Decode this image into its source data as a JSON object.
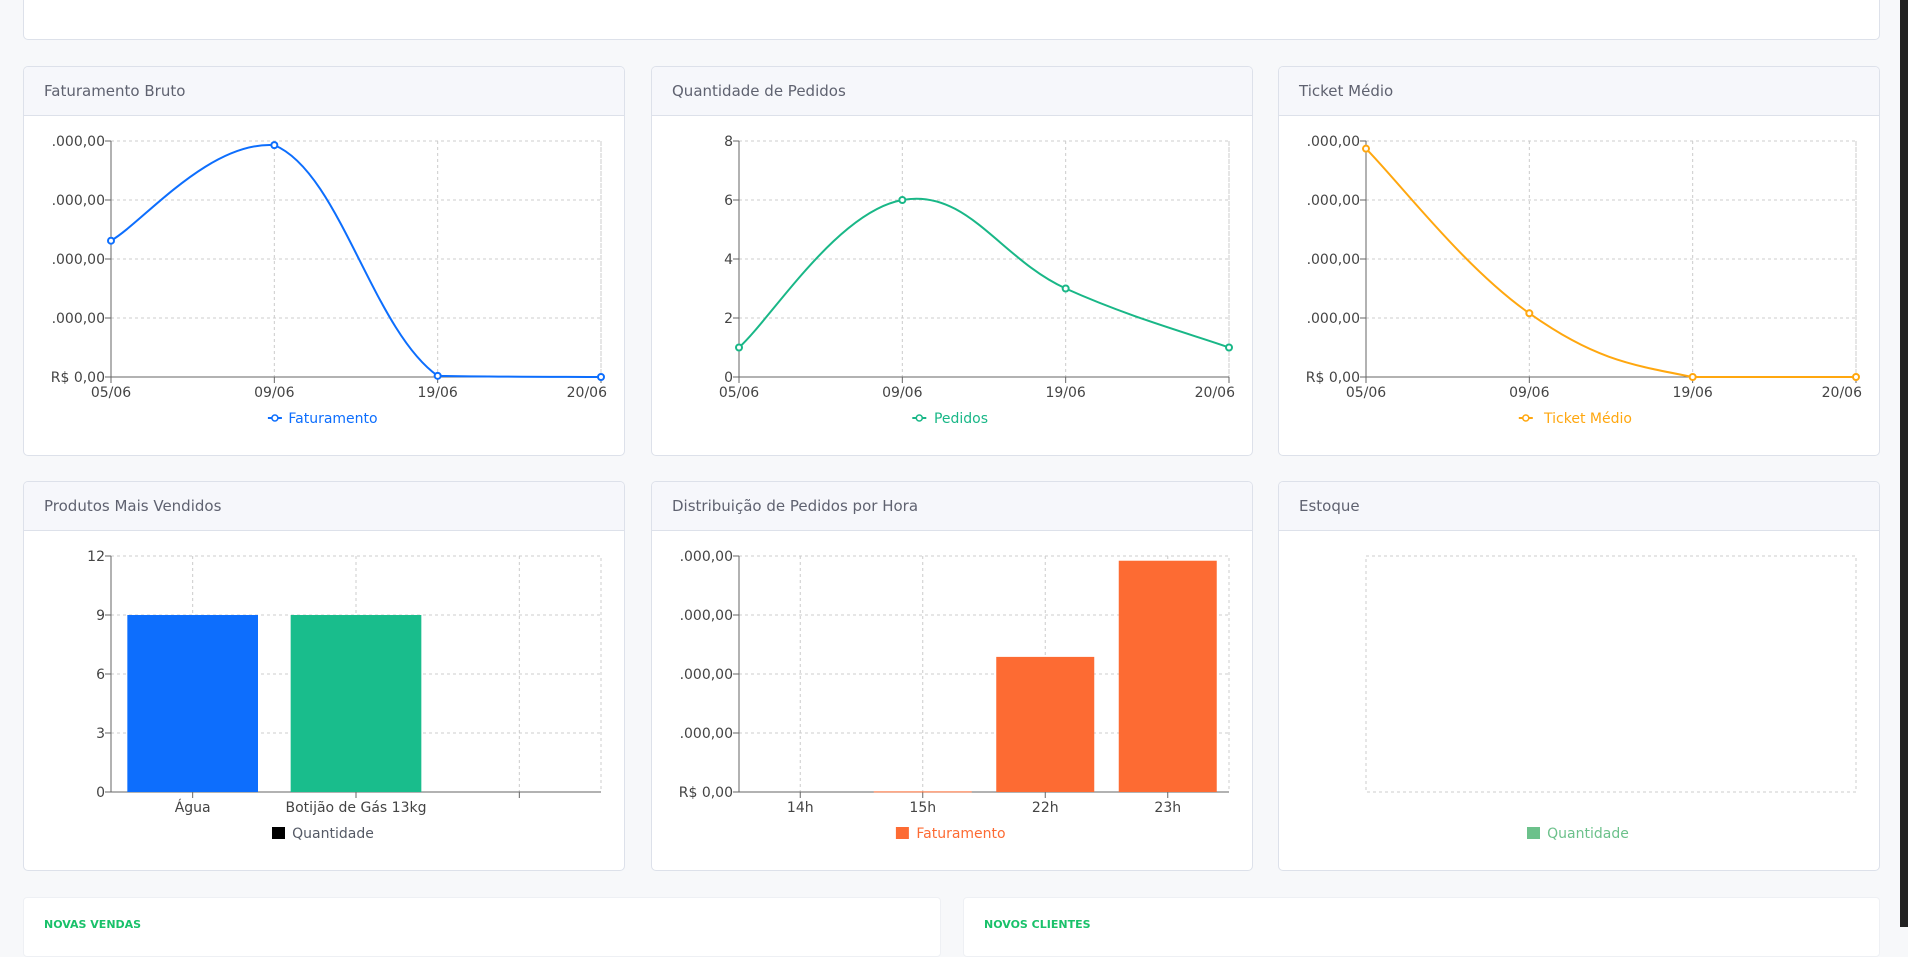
{
  "charts": [
    {
      "title": "Faturamento Bruto",
      "type": "line",
      "color": "#0d6efd",
      "legend": "Faturamento",
      "legend_icon": "line-dot",
      "categories": [
        "05/06",
        "09/06",
        "19/06",
        "20/06"
      ],
      "values": [
        2.31,
        3.93,
        0.02,
        0
      ],
      "yticks": [
        "R$ 0,00",
        ".000,00",
        ".000,00",
        ".000,00",
        ".000,00"
      ],
      "ylim": [
        0,
        4
      ]
    },
    {
      "title": "Quantidade de Pedidos",
      "type": "line",
      "color": "#19b787",
      "legend": "Pedidos",
      "legend_icon": "line-dot",
      "categories": [
        "05/06",
        "09/06",
        "19/06",
        "20/06"
      ],
      "values": [
        1,
        6,
        3,
        1
      ],
      "yticks": [
        "0",
        "2",
        "4",
        "6",
        "8"
      ],
      "ylim": [
        0,
        8
      ]
    },
    {
      "title": "Ticket Médio",
      "type": "line",
      "color": "#ffa70f",
      "legend": "Ticket Médio",
      "legend_icon": "line-dot",
      "categories": [
        "05/06",
        "09/06",
        "19/06",
        "20/06"
      ],
      "values": [
        3.87,
        1.08,
        0,
        0
      ],
      "yticks": [
        "R$ 0,00",
        ".000,00",
        ".000,00",
        ".000,00",
        ".000,00"
      ],
      "ylim": [
        0,
        4
      ]
    },
    {
      "title": "Produtos Mais Vendidos",
      "type": "bar",
      "colors": [
        "#0d6efd",
        "#19bd8c",
        "#ffffff"
      ],
      "legend": "Quantidade",
      "legend_color": "#000000",
      "legend_text_color": "#555a66",
      "categories": [
        "Água",
        "Botijão de Gás 13kg",
        ""
      ],
      "values": [
        9,
        9,
        0
      ],
      "yticks": [
        "0",
        "3",
        "6",
        "9",
        "12"
      ],
      "ylim": [
        0,
        12
      ]
    },
    {
      "title": "Distribuição de Pedidos por Hora",
      "type": "bar",
      "colors": [
        "#fd6b33",
        "#fd6b33",
        "#fd6b33",
        "#fd6b33"
      ],
      "legend": "Faturamento",
      "legend_color": "#fd6b33",
      "legend_text_color": "#fd6b33",
      "categories": [
        "14h",
        "15h",
        "22h",
        "23h"
      ],
      "values": [
        0,
        0.01,
        2.29,
        3.92
      ],
      "yticks": [
        "R$ 0,00",
        ".000,00",
        ".000,00",
        ".000,00",
        ".000,00"
      ],
      "ylim": [
        0,
        4
      ]
    },
    {
      "title": "Estoque",
      "type": "bar",
      "colors": [],
      "legend": "Quantidade",
      "legend_color": "#6cc18b",
      "legend_text_color": "#6cc18b",
      "categories": [],
      "values": [],
      "yticks": [],
      "ylim": [
        0,
        1
      ],
      "empty": true
    }
  ],
  "stats": [
    {
      "label": "NOVAS VENDAS"
    },
    {
      "label": "NOVOS CLIENTES"
    }
  ]
}
